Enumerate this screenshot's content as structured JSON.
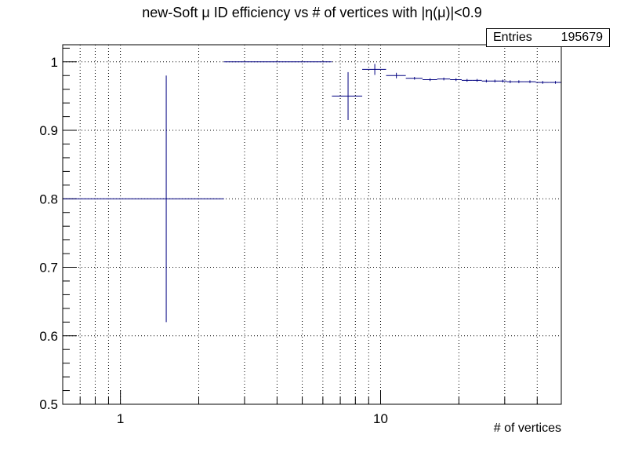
{
  "chart_data": {
    "type": "scatter",
    "title": "new-Soft μ ID efficiency vs # of vertices with |η(μ)|<0.9",
    "xlabel": "# of vertices",
    "ylabel": "",
    "x_scale": "log",
    "xlim": [
      0.6,
      49.5
    ],
    "ylim": [
      0.5,
      1.025
    ],
    "x_tick_labels": [
      "1",
      "10"
    ],
    "y_tick_labels": [
      "0.5",
      "0.6",
      "0.7",
      "0.8",
      "0.9",
      "1"
    ],
    "grid": true,
    "marker_color": "#000080",
    "stats": {
      "label": "Entries",
      "value": "195679"
    },
    "points": [
      {
        "x": 1.5,
        "xlo": 0.6,
        "xhi": 2.5,
        "y": 0.8,
        "ylo": 0.62,
        "yhi": 0.98
      },
      {
        "x": 4.5,
        "xlo": 2.5,
        "xhi": 6.5,
        "y": 1.0,
        "ylo": 1.0,
        "yhi": 1.0
      },
      {
        "x": 7.5,
        "xlo": 6.5,
        "xhi": 8.5,
        "y": 0.95,
        "ylo": 0.915,
        "yhi": 0.985
      },
      {
        "x": 9.5,
        "xlo": 8.5,
        "xhi": 10.5,
        "y": 0.989,
        "ylo": 0.981,
        "yhi": 0.997
      },
      {
        "x": 11.5,
        "xlo": 10.5,
        "xhi": 12.5,
        "y": 0.98,
        "ylo": 0.976,
        "yhi": 0.984
      },
      {
        "x": 13.5,
        "xlo": 12.5,
        "xhi": 14.5,
        "y": 0.976,
        "ylo": 0.974,
        "yhi": 0.978
      },
      {
        "x": 15.5,
        "xlo": 14.5,
        "xhi": 16.5,
        "y": 0.974,
        "ylo": 0.972,
        "yhi": 0.976
      },
      {
        "x": 17.5,
        "xlo": 16.5,
        "xhi": 18.5,
        "y": 0.975,
        "ylo": 0.973,
        "yhi": 0.977
      },
      {
        "x": 19.5,
        "xlo": 18.5,
        "xhi": 20.5,
        "y": 0.974,
        "ylo": 0.972,
        "yhi": 0.976
      },
      {
        "x": 21.5,
        "xlo": 20.5,
        "xhi": 22.5,
        "y": 0.973,
        "ylo": 0.971,
        "yhi": 0.975
      },
      {
        "x": 23.5,
        "xlo": 22.5,
        "xhi": 24.5,
        "y": 0.973,
        "ylo": 0.971,
        "yhi": 0.975
      },
      {
        "x": 25.5,
        "xlo": 24.5,
        "xhi": 26.5,
        "y": 0.972,
        "ylo": 0.97,
        "yhi": 0.974
      },
      {
        "x": 27.5,
        "xlo": 26.5,
        "xhi": 28.5,
        "y": 0.972,
        "ylo": 0.97,
        "yhi": 0.974
      },
      {
        "x": 29.5,
        "xlo": 28.5,
        "xhi": 30.5,
        "y": 0.972,
        "ylo": 0.97,
        "yhi": 0.974
      },
      {
        "x": 31.5,
        "xlo": 30.5,
        "xhi": 32.5,
        "y": 0.971,
        "ylo": 0.969,
        "yhi": 0.973
      },
      {
        "x": 34,
        "xlo": 32.5,
        "xhi": 35.5,
        "y": 0.971,
        "ylo": 0.969,
        "yhi": 0.973
      },
      {
        "x": 37.5,
        "xlo": 35.5,
        "xhi": 39.5,
        "y": 0.971,
        "ylo": 0.969,
        "yhi": 0.973
      },
      {
        "x": 42,
        "xlo": 39.5,
        "xhi": 44.5,
        "y": 0.97,
        "ylo": 0.968,
        "yhi": 0.972
      },
      {
        "x": 47,
        "xlo": 44.5,
        "xhi": 49.5,
        "y": 0.97,
        "ylo": 0.968,
        "yhi": 0.972
      }
    ]
  }
}
